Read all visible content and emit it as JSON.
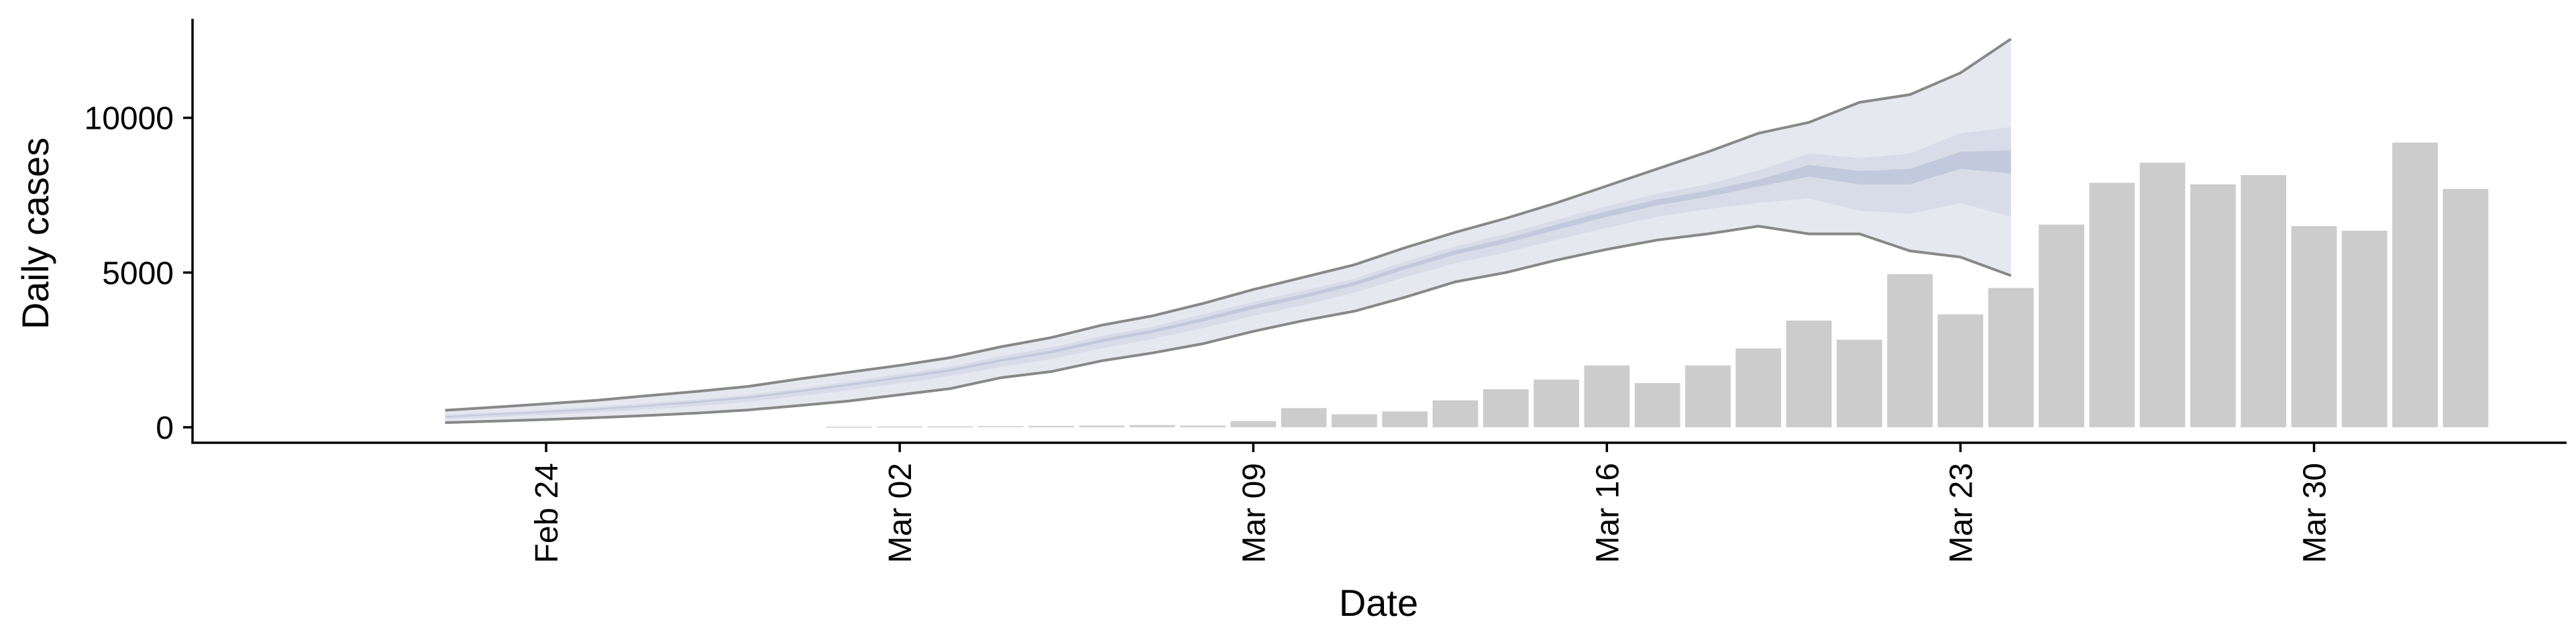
{
  "chart_data": {
    "type": "bar",
    "xlabel": "Date",
    "ylabel": "Daily cases",
    "x_range": [
      "2020-02-17",
      "2020-04-04"
    ],
    "ylim": [
      -500,
      13200
    ],
    "yticks": [
      0,
      5000,
      10000
    ],
    "ytick_labels": [
      "0",
      "5000",
      "10000"
    ],
    "xticks": [
      "2020-02-24",
      "2020-03-02",
      "2020-03-09",
      "2020-03-16",
      "2020-03-23",
      "2020-03-30"
    ],
    "xtick_labels": [
      "Feb 24",
      "Mar 02",
      "Mar 09",
      "Mar 16",
      "Mar 23",
      "Mar 30"
    ],
    "grid": false,
    "legend": "none",
    "colors": {
      "bars": "#cccccc",
      "band_outer": "#e6e8f0",
      "band_mid": "#d8dce8",
      "band_inner": "#c3c9dc",
      "bound_lines": "#888888"
    },
    "observed": {
      "dates": [
        "2020-03-01",
        "2020-03-02",
        "2020-03-03",
        "2020-03-04",
        "2020-03-05",
        "2020-03-06",
        "2020-03-07",
        "2020-03-08",
        "2020-03-09",
        "2020-03-10",
        "2020-03-11",
        "2020-03-12",
        "2020-03-13",
        "2020-03-14",
        "2020-03-15",
        "2020-03-16",
        "2020-03-17",
        "2020-03-18",
        "2020-03-19",
        "2020-03-20",
        "2020-03-21",
        "2020-03-22",
        "2020-03-23",
        "2020-03-24",
        "2020-03-25",
        "2020-03-26",
        "2020-03-27",
        "2020-03-28",
        "2020-03-29",
        "2020-03-30",
        "2020-03-31",
        "2020-04-01",
        "2020-04-02"
      ],
      "values": [
        20,
        25,
        30,
        35,
        45,
        55,
        70,
        55,
        200,
        620,
        420,
        510,
        870,
        1230,
        1540,
        2000,
        1430,
        2000,
        2550,
        3450,
        2830,
        4950,
        3650,
        4500,
        6550,
        7900,
        8550,
        7850,
        8150,
        6500,
        6350,
        9200,
        7700
      ]
    },
    "estimate": {
      "dates": [
        "2020-02-22",
        "2020-02-23",
        "2020-02-24",
        "2020-02-25",
        "2020-02-26",
        "2020-02-27",
        "2020-02-28",
        "2020-02-29",
        "2020-03-01",
        "2020-03-02",
        "2020-03-03",
        "2020-03-04",
        "2020-03-05",
        "2020-03-06",
        "2020-03-07",
        "2020-03-08",
        "2020-03-09",
        "2020-03-10",
        "2020-03-11",
        "2020-03-12",
        "2020-03-13",
        "2020-03-14",
        "2020-03-15",
        "2020-03-16",
        "2020-03-17",
        "2020-03-18",
        "2020-03-19",
        "2020-03-20",
        "2020-03-21",
        "2020-03-22",
        "2020-03-23",
        "2020-03-24"
      ],
      "lower": [
        150,
        200,
        250,
        310,
        380,
        460,
        560,
        700,
        850,
        1050,
        1250,
        1600,
        1800,
        2150,
        2400,
        2700,
        3100,
        3450,
        3750,
        4200,
        4700,
        5000,
        5400,
        5750,
        6050,
        6250,
        6500,
        6250,
        6250,
        5700,
        5500,
        4900
      ],
      "upper": [
        550,
        650,
        760,
        870,
        1020,
        1160,
        1320,
        1560,
        1780,
        2000,
        2250,
        2600,
        2900,
        3300,
        3600,
        4000,
        4450,
        4850,
        5250,
        5800,
        6300,
        6750,
        7250,
        7800,
        8350,
        8900,
        9500,
        9850,
        10500,
        10750,
        11450,
        12550
      ],
      "mid_lower": [
        260,
        330,
        400,
        480,
        580,
        690,
        820,
        1000,
        1200,
        1420,
        1650,
        1950,
        2200,
        2550,
        2850,
        3200,
        3600,
        3950,
        4350,
        4850,
        5300,
        5650,
        6050,
        6450,
        6800,
        7050,
        7250,
        7400,
        7000,
        6900,
        7250,
        6800
      ],
      "mid_upper": [
        400,
        480,
        570,
        660,
        780,
        900,
        1050,
        1250,
        1480,
        1720,
        1950,
        2300,
        2580,
        2950,
        3250,
        3650,
        4050,
        4420,
        4800,
        5350,
        5850,
        6250,
        6700,
        7150,
        7550,
        7850,
        8300,
        8850,
        8700,
        8850,
        9500,
        9700
      ],
      "inner_lower": [
        320,
        400,
        480,
        560,
        670,
        790,
        930,
        1130,
        1340,
        1570,
        1800,
        2120,
        2390,
        2750,
        3050,
        3420,
        3820,
        4180,
        4580,
        5100,
        5580,
        5950,
        6380,
        6800,
        7170,
        7450,
        7780,
        8100,
        7850,
        7850,
        8350,
        8200
      ],
      "inner_upper": [
        360,
        440,
        520,
        610,
        720,
        850,
        990,
        1190,
        1410,
        1640,
        1880,
        2200,
        2480,
        2850,
        3150,
        3530,
        3950,
        4300,
        4700,
        5230,
        5720,
        6100,
        6550,
        6980,
        7360,
        7650,
        8000,
        8480,
        8280,
        8350,
        8900,
        8950
      ]
    }
  }
}
